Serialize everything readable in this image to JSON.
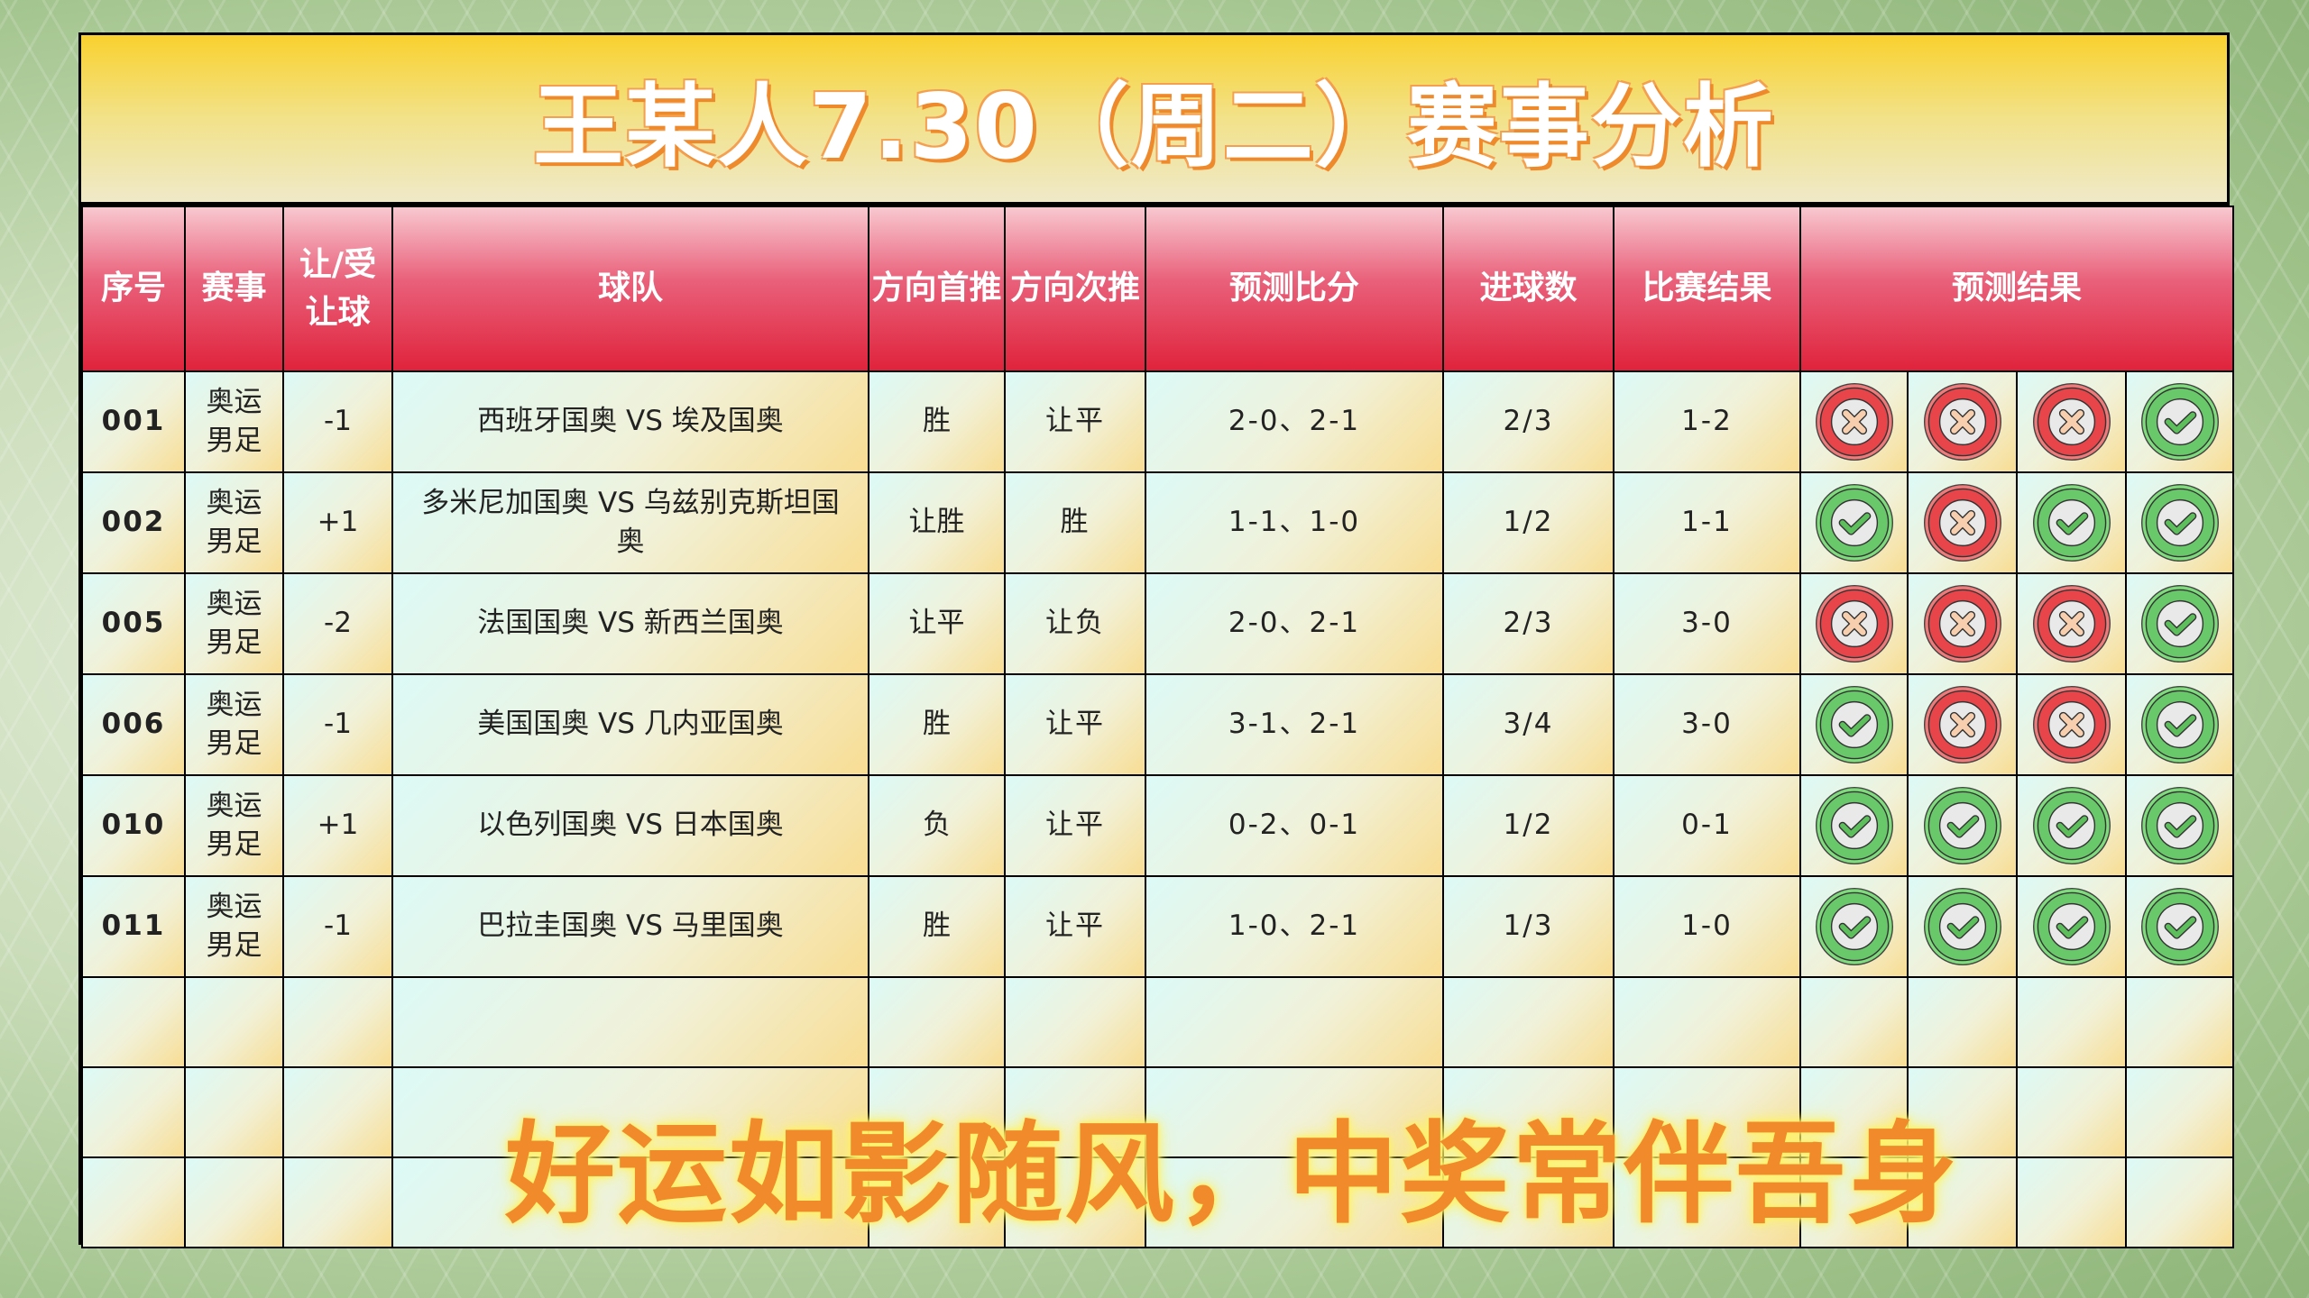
{
  "title": "王某人7.30（周二）赛事分析",
  "headers": [
    "序号",
    "赛事",
    "让/受让球",
    "球队",
    "方向首推",
    "方向次推",
    "预测比分",
    "进球数",
    "比赛结果",
    "预测结果"
  ],
  "colors": {
    "correct": "#6cc96e",
    "wrong": "#e8454a",
    "header": "#e0233c",
    "title": "#f9d12e"
  },
  "rows": [
    {
      "no": "001",
      "event": "奥运男足",
      "handicap": "-1",
      "teams": "西班牙国奥 VS 埃及国奥",
      "first": "胜",
      "second": "让平",
      "score": "2-0、2-1",
      "goals": "2/3",
      "result": "1-2",
      "marks": [
        "wrong",
        "wrong",
        "wrong",
        "correct"
      ]
    },
    {
      "no": "002",
      "event": "奥运男足",
      "handicap": "+1",
      "teams": "多米尼加国奥 VS 乌兹别克斯坦国奥",
      "first": "让胜",
      "second": "胜",
      "score": "1-1、1-0",
      "goals": "1/2",
      "result": "1-1",
      "marks": [
        "correct",
        "wrong",
        "correct",
        "correct"
      ]
    },
    {
      "no": "005",
      "event": "奥运男足",
      "handicap": "-2",
      "teams": "法国国奥 VS 新西兰国奥",
      "first": "让平",
      "second": "让负",
      "score": "2-0、2-1",
      "goals": "2/3",
      "result": "3-0",
      "marks": [
        "wrong",
        "wrong",
        "wrong",
        "correct"
      ]
    },
    {
      "no": "006",
      "event": "奥运男足",
      "handicap": "-1",
      "teams": "美国国奥 VS 几内亚国奥",
      "first": "胜",
      "second": "让平",
      "score": "3-1、2-1",
      "goals": "3/4",
      "result": "3-0",
      "marks": [
        "correct",
        "wrong",
        "wrong",
        "correct"
      ]
    },
    {
      "no": "010",
      "event": "奥运男足",
      "handicap": "+1",
      "teams": "以色列国奥 VS 日本国奥",
      "first": "负",
      "second": "让平",
      "score": "0-2、0-1",
      "goals": "1/2",
      "result": "0-1",
      "marks": [
        "correct",
        "correct",
        "correct",
        "correct"
      ]
    },
    {
      "no": "011",
      "event": "奥运男足",
      "handicap": "-1",
      "teams": "巴拉圭国奥 VS 马里国奥",
      "first": "胜",
      "second": "让平",
      "score": "1-0、2-1",
      "goals": "1/3",
      "result": "1-0",
      "marks": [
        "correct",
        "correct",
        "correct",
        "correct"
      ]
    }
  ],
  "slogan": "好运如影随风，中奖常伴吾身"
}
